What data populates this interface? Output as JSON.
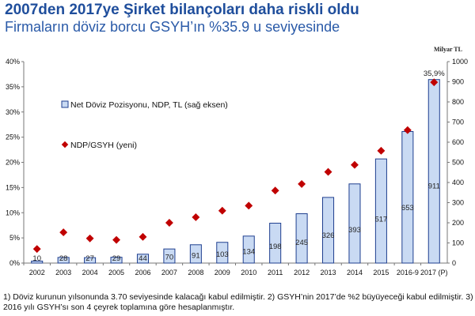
{
  "header": {
    "title": "2007den 2017ye Şirket bilançoları daha riskli oldu",
    "subtitle": "Firmaların döviz borcu GSYH’ın %35.9 u seviyesinde"
  },
  "unit_label": "Milyar TL",
  "footnote": "1) Döviz kurunun yılsonunda 3.70 seviyesinde kalacağı kabul edilmiştir. 2) GSYH’nin 2017’de %2 büyüyeceği kabul edilmiştir. 3) 2016 yılı GSYH’sı son 4 çeyrek toplamına göre hesaplanmıştır.",
  "chart_data": {
    "type": "bar",
    "categories": [
      "2002",
      "2003",
      "2004",
      "2005",
      "2006",
      "2007",
      "2008",
      "2009",
      "2010",
      "2011",
      "2012",
      "2013",
      "2014",
      "2015",
      "2016-9",
      "2017 (P)"
    ],
    "series": [
      {
        "name": "Net Döviz Pozisyonu, NDP, TL (sağ eksen)",
        "type": "bar",
        "axis": "right",
        "color": "#c9daf3",
        "values": [
          10,
          28,
          27,
          29,
          44,
          70,
          91,
          103,
          134,
          198,
          245,
          326,
          393,
          517,
          653,
          911
        ],
        "labels": [
          "10",
          "28",
          "27",
          "29",
          "44",
          "70",
          "91",
          "103",
          "134",
          "198",
          "245",
          "326",
          "393",
          "517",
          "653",
          "911"
        ]
      },
      {
        "name": "NDP/GSYH (yeni)",
        "type": "scatter",
        "axis": "left",
        "color": "#c00000",
        "values": [
          2.8,
          6.1,
          4.9,
          4.6,
          5.2,
          8.0,
          9.1,
          10.4,
          11.4,
          14.4,
          15.7,
          18.1,
          19.5,
          22.3,
          26.4,
          35.9
        ],
        "labels": [
          "",
          "",
          "",
          "",
          "",
          "",
          "",
          "",
          "",
          "",
          "",
          "",
          "",
          "",
          "",
          "35,9%"
        ]
      }
    ],
    "left_axis": {
      "ylim": [
        0,
        40
      ],
      "ticks": [
        "0%",
        "5%",
        "10%",
        "15%",
        "20%",
        "25%",
        "30%",
        "35%",
        "40%"
      ]
    },
    "right_axis": {
      "ylim": [
        0,
        1000
      ],
      "ticks": [
        "0",
        "100",
        "200",
        "300",
        "400",
        "500",
        "600",
        "700",
        "800",
        "900",
        "1000"
      ]
    },
    "grid": false,
    "legend_position": "top-left (inside plot)"
  }
}
